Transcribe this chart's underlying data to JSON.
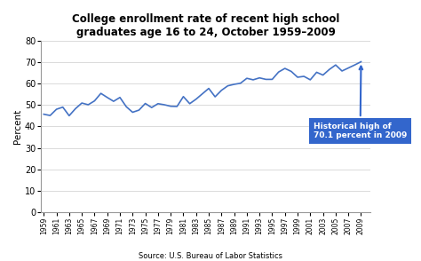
{
  "title": "College enrollment rate of recent high school\ngraduates age 16 to 24, October 1959–2009",
  "ylabel": "Percent",
  "source": "Source: U.S. Bureau of Labor Statistics",
  "ylim": [
    0,
    80
  ],
  "yticks": [
    0,
    10,
    20,
    30,
    40,
    50,
    60,
    70,
    80
  ],
  "line_color": "#4472C4",
  "annotation_text": "Historical high of\n70.1 percent in 2009",
  "annotation_box_color": "#3366CC",
  "annotation_text_color": "#ffffff",
  "bg_color": "#ffffff",
  "years": [
    1959,
    1960,
    1961,
    1962,
    1963,
    1964,
    1965,
    1966,
    1967,
    1968,
    1969,
    1970,
    1971,
    1972,
    1973,
    1974,
    1975,
    1976,
    1977,
    1978,
    1979,
    1980,
    1981,
    1982,
    1983,
    1984,
    1985,
    1986,
    1987,
    1988,
    1989,
    1990,
    1991,
    1992,
    1993,
    1994,
    1995,
    1996,
    1997,
    1998,
    1999,
    2000,
    2001,
    2002,
    2003,
    2004,
    2005,
    2006,
    2007,
    2008,
    2009
  ],
  "values": [
    45.7,
    45.1,
    48.0,
    49.0,
    45.0,
    48.3,
    50.9,
    50.1,
    51.9,
    55.4,
    53.5,
    51.7,
    53.5,
    49.2,
    46.6,
    47.6,
    50.7,
    48.8,
    50.6,
    50.1,
    49.4,
    49.3,
    53.9,
    50.6,
    52.7,
    55.2,
    57.7,
    53.8,
    56.8,
    58.9,
    59.6,
    60.1,
    62.4,
    61.7,
    62.6,
    61.9,
    61.9,
    65.3,
    67.0,
    65.6,
    62.9,
    63.3,
    61.7,
    65.2,
    63.9,
    66.5,
    68.6,
    65.8,
    67.2,
    68.6,
    70.1
  ]
}
